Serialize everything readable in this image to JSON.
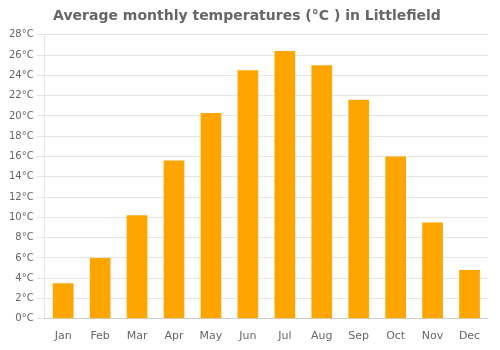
{
  "chart_data": {
    "type": "bar",
    "title": "Average monthly temperatures (°C ) in Littlefield",
    "categories": [
      "Jan",
      "Feb",
      "Mar",
      "Apr",
      "May",
      "Jun",
      "Jul",
      "Aug",
      "Sep",
      "Oct",
      "Nov",
      "Dec"
    ],
    "values": [
      3.5,
      6.0,
      10.2,
      15.6,
      20.3,
      24.5,
      26.4,
      25.0,
      21.6,
      16.0,
      9.5,
      4.8
    ],
    "color": "#FFA500",
    "ylim": [
      0,
      28
    ],
    "yticks": [
      {
        "value": 0,
        "label": "0°C"
      },
      {
        "value": 2,
        "label": "2°C"
      },
      {
        "value": 4,
        "label": "4°C"
      },
      {
        "value": 6,
        "label": "6°C"
      },
      {
        "value": 8,
        "label": "8°C"
      },
      {
        "value": 10,
        "label": "10°C"
      },
      {
        "value": 12,
        "label": "12°C"
      },
      {
        "value": 14,
        "label": "14°C"
      },
      {
        "value": 16,
        "label": "16°C"
      },
      {
        "value": 18,
        "label": "18°C"
      },
      {
        "value": 20,
        "label": "20°C"
      },
      {
        "value": 22,
        "label": "22°C"
      },
      {
        "value": 24,
        "label": "24°C"
      },
      {
        "value": 26,
        "label": "26°C"
      },
      {
        "value": 28,
        "label": "28°C"
      }
    ],
    "grid": true
  }
}
